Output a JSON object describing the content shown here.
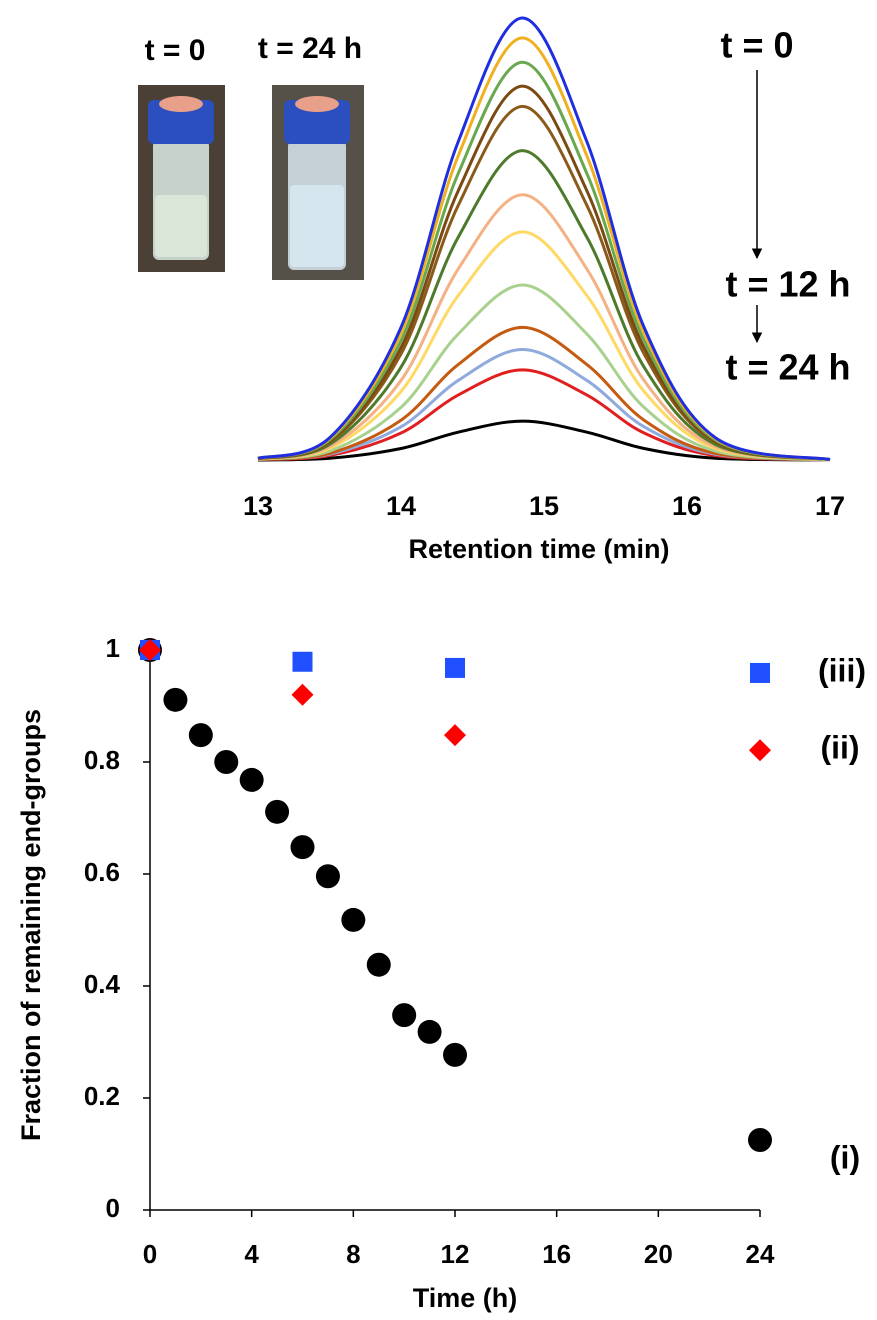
{
  "chart_data": [
    {
      "type": "line",
      "xlabel": "Retention time (min)",
      "xlim": [
        13,
        17
      ],
      "xticks": [
        13,
        14,
        15,
        16,
        17
      ],
      "ylim": [
        0,
        1
      ],
      "x": [
        13,
        13.5,
        14,
        14.4,
        14.85,
        15.3,
        15.7,
        16.2,
        17
      ],
      "series": [
        {
          "color": "#1f2fe0",
          "values": [
            0.004,
            0.05,
            0.3,
            0.72,
            1,
            0.72,
            0.3,
            0.05,
            0.001
          ]
        },
        {
          "color": "#f0b020",
          "values": [
            0.004,
            0.048,
            0.287,
            0.688,
            0.955,
            0.688,
            0.287,
            0.048,
            0.001
          ]
        },
        {
          "color": "#6aa84f",
          "values": [
            0.004,
            0.045,
            0.27,
            0.648,
            0.9,
            0.648,
            0.27,
            0.045,
            0.001
          ]
        },
        {
          "color": "#7b4a12",
          "values": [
            0.003,
            0.042,
            0.254,
            0.609,
            0.846,
            0.609,
            0.254,
            0.042,
            0.001
          ]
        },
        {
          "color": "#8a5a1a",
          "values": [
            0.003,
            0.04,
            0.24,
            0.576,
            0.8,
            0.576,
            0.24,
            0.04,
            0.001
          ]
        },
        {
          "color": "#4e7a2c",
          "values": [
            0.003,
            0.035,
            0.21,
            0.504,
            0.7,
            0.504,
            0.21,
            0.035,
            0.001
          ]
        },
        {
          "color": "#f4b183",
          "values": [
            0.002,
            0.03,
            0.18,
            0.432,
            0.6,
            0.432,
            0.18,
            0.03,
            0.001
          ]
        },
        {
          "color": "#ffd966",
          "values": [
            0.002,
            0.026,
            0.155,
            0.372,
            0.516,
            0.372,
            0.155,
            0.026,
            0.001
          ]
        },
        {
          "color": "#a9d18e",
          "values": [
            0.002,
            0.02,
            0.119,
            0.285,
            0.396,
            0.285,
            0.119,
            0.02,
            0
          ]
        },
        {
          "color": "#c55a11",
          "values": [
            0.001,
            0.015,
            0.09,
            0.216,
            0.3,
            0.216,
            0.09,
            0.015,
            0
          ]
        },
        {
          "color": "#8faadc",
          "values": [
            0.001,
            0.013,
            0.075,
            0.18,
            0.25,
            0.18,
            0.075,
            0.013,
            0
          ]
        },
        {
          "color": "#e02020",
          "values": [
            0.001,
            0.01,
            0.061,
            0.147,
            0.204,
            0.147,
            0.061,
            0.01,
            0
          ]
        },
        {
          "color": "#000000",
          "values": [
            0,
            0.004,
            0.026,
            0.063,
            0.088,
            0.063,
            0.026,
            0.004,
            0
          ]
        }
      ],
      "annotations": [
        {
          "text": "t = 0",
          "color": "#1f2fe0"
        },
        {
          "text": "t = 24 h",
          "color": "#000000"
        },
        {
          "text": "t = 0",
          "color": "#1f2fe0"
        },
        {
          "text": "t = 12 h",
          "color": "#e00000"
        },
        {
          "text": "t = 24 h",
          "color": "#000000"
        }
      ]
    },
    {
      "type": "scatter",
      "xlabel": "Time (h)",
      "ylabel": "Fraction of remaining end-groups",
      "xlim": [
        0,
        24
      ],
      "xticks": [
        0,
        4,
        8,
        12,
        16,
        20,
        24
      ],
      "ylim": [
        0,
        1
      ],
      "yticks": [
        0,
        0.2,
        0.4,
        0.6,
        0.8,
        1
      ],
      "series": [
        {
          "name": "(i)",
          "color": "#000000",
          "marker": "circle",
          "x": [
            0,
            1,
            2,
            3,
            4,
            5,
            6,
            7,
            8,
            9,
            10,
            11,
            12,
            24
          ],
          "values": [
            1,
            0.911,
            0.848,
            0.8,
            0.768,
            0.711,
            0.648,
            0.596,
            0.518,
            0.438,
            0.348,
            0.318,
            0.277,
            0.125
          ]
        },
        {
          "name": "(iii)",
          "color": "#1f4fff",
          "marker": "square",
          "x": [
            0,
            6,
            12,
            24
          ],
          "values": [
            1,
            0.979,
            0.968,
            0.959
          ]
        },
        {
          "name": "(ii)",
          "color": "#ff0000",
          "marker": "diamond",
          "x": [
            0,
            6,
            12,
            24
          ],
          "values": [
            1,
            0.92,
            0.848,
            0.821
          ]
        }
      ]
    }
  ]
}
